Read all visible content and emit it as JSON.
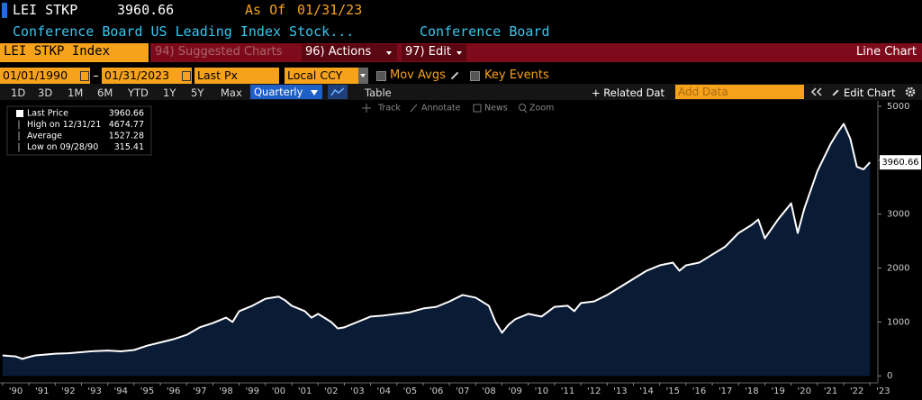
{
  "header": {
    "ticker": "LEI STKP",
    "price": "3960.66",
    "as_of_label": "As Of",
    "as_of_date": "01/31/23",
    "name": "Conference Board US Leading Index Stock...",
    "source": "Conference Board"
  },
  "menu": {
    "security": "LEI STKP Index",
    "suggested": "94) Suggested Charts",
    "actions": "96) Actions",
    "edit": "97) Edit",
    "chart_kind": "Line Chart"
  },
  "controls": {
    "start": "01/01/1990",
    "end": "01/31/2023",
    "field": "Last Px",
    "currency": "Local CCY",
    "mov_avgs": "Mov Avgs",
    "key_events": "Key Events"
  },
  "toolbar": {
    "periods": [
      "1D",
      "3D",
      "1M",
      "6M",
      "YTD",
      "1Y",
      "5Y",
      "Max"
    ],
    "frequency": "Quarterly",
    "table": "Table",
    "related": "+ Related Dat",
    "add_data": "Add Data",
    "edit_chart": "Edit Chart"
  },
  "tools": [
    "Track",
    "Annotate",
    "News",
    "Zoom"
  ],
  "chart_data": {
    "type": "line",
    "legend": [
      {
        "label": "Last Price",
        "value": 3960.66
      },
      {
        "label": "High on 12/31/21",
        "value": 4674.77
      },
      {
        "label": "Average",
        "value": 1527.28
      },
      {
        "label": "Low on 09/28/90",
        "value": 315.41
      }
    ],
    "x": [
      1990,
      1990.25,
      1990.5,
      1990.75,
      1991,
      1991.25,
      1991.5,
      1991.75,
      1992,
      1992.5,
      1993,
      1993.5,
      1994,
      1994.5,
      1995,
      1995.5,
      1996,
      1996.5,
      1997,
      1997.5,
      1998,
      1998.5,
      1998.75,
      1999,
      1999.5,
      2000,
      2000.5,
      2000.75,
      2001,
      2001.5,
      2001.75,
      2002,
      2002.5,
      2002.75,
      2003,
      2003.5,
      2004,
      2004.5,
      2005,
      2005.5,
      2006,
      2006.5,
      2007,
      2007.5,
      2008,
      2008.5,
      2008.75,
      2009,
      2009.25,
      2009.5,
      2010,
      2010.5,
      2011,
      2011.5,
      2011.75,
      2012,
      2012.5,
      2013,
      2013.5,
      2014,
      2014.5,
      2015,
      2015.5,
      2015.75,
      2016,
      2016.5,
      2017,
      2017.5,
      2018,
      2018.5,
      2018.75,
      2019,
      2019.5,
      2019.75,
      2020,
      2020.25,
      2020.5,
      2021,
      2021.5,
      2021.75,
      2022,
      2022.25,
      2022.5,
      2022.75,
      2023
    ],
    "series": [
      {
        "name": "Last Price",
        "color": "#ffffff",
        "values": [
          380,
          370,
          360,
          315,
          350,
          380,
          390,
          400,
          410,
          420,
          440,
          460,
          470,
          455,
          480,
          560,
          620,
          680,
          760,
          900,
          980,
          1080,
          1000,
          1200,
          1300,
          1430,
          1470,
          1400,
          1300,
          1200,
          1080,
          1150,
          1000,
          880,
          900,
          1000,
          1100,
          1120,
          1150,
          1180,
          1250,
          1280,
          1380,
          1500,
          1450,
          1300,
          1000,
          800,
          950,
          1050,
          1150,
          1100,
          1280,
          1300,
          1200,
          1350,
          1380,
          1500,
          1650,
          1800,
          1950,
          2050,
          2100,
          1950,
          2050,
          2100,
          2250,
          2400,
          2650,
          2800,
          2900,
          2550,
          2900,
          3050,
          3200,
          2650,
          3100,
          3800,
          4300,
          4500,
          4675,
          4400,
          3880,
          3830,
          3960.66
        ]
      }
    ],
    "area_color": "#0a1b36",
    "xlim": [
      1989.9,
      2023.3
    ],
    "xticks": [
      {
        "value": 1990,
        "label": "'90"
      },
      {
        "value": 1991,
        "label": "'91"
      },
      {
        "value": 1992,
        "label": "'92"
      },
      {
        "value": 1993,
        "label": "'93"
      },
      {
        "value": 1994,
        "label": "'94"
      },
      {
        "value": 1995,
        "label": "'95"
      },
      {
        "value": 1996,
        "label": "'96"
      },
      {
        "value": 1997,
        "label": "'97"
      },
      {
        "value": 1998,
        "label": "'98"
      },
      {
        "value": 1999,
        "label": "'99"
      },
      {
        "value": 2000,
        "label": "'00"
      },
      {
        "value": 2001,
        "label": "'01"
      },
      {
        "value": 2002,
        "label": "'02"
      },
      {
        "value": 2003,
        "label": "'03"
      },
      {
        "value": 2004,
        "label": "'04"
      },
      {
        "value": 2005,
        "label": "'05"
      },
      {
        "value": 2006,
        "label": "'06"
      },
      {
        "value": 2007,
        "label": "'07"
      },
      {
        "value": 2008,
        "label": "'08"
      },
      {
        "value": 2009,
        "label": "'09"
      },
      {
        "value": 2010,
        "label": "'10"
      },
      {
        "value": 2011,
        "label": "'11"
      },
      {
        "value": 2012,
        "label": "'12"
      },
      {
        "value": 2013,
        "label": "'13"
      },
      {
        "value": 2014,
        "label": "'14"
      },
      {
        "value": 2015,
        "label": "'15"
      },
      {
        "value": 2016,
        "label": "'16"
      },
      {
        "value": 2017,
        "label": "'17"
      },
      {
        "value": 2018,
        "label": "'18"
      },
      {
        "value": 2019,
        "label": "'19"
      },
      {
        "value": 2020,
        "label": "'20"
      },
      {
        "value": 2021,
        "label": "'21"
      },
      {
        "value": 2022,
        "label": "'22"
      },
      {
        "value": 2023,
        "label": "'23"
      }
    ],
    "ylim": [
      -130,
      5100
    ],
    "yticks": [
      0,
      1000,
      2000,
      3000,
      4000,
      5000
    ]
  }
}
